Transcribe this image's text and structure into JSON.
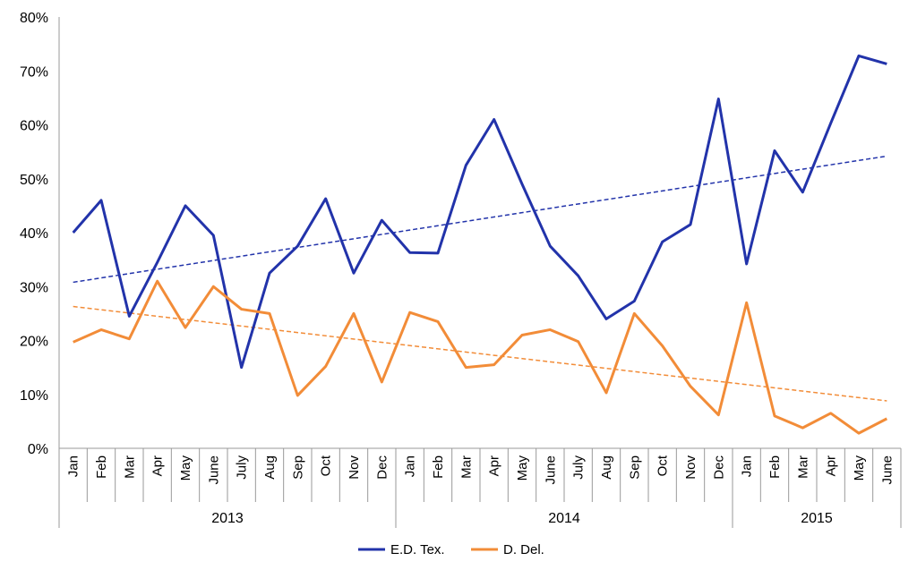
{
  "chart_data": {
    "type": "line",
    "title": "",
    "xlabel": "",
    "ylabel": "",
    "ylim": [
      0,
      80
    ],
    "yticks": [
      {
        "value": 0,
        "label": "0%"
      },
      {
        "value": 10,
        "label": "10%"
      },
      {
        "value": 20,
        "label": "20%"
      },
      {
        "value": 30,
        "label": "30%"
      },
      {
        "value": 40,
        "label": "40%"
      },
      {
        "value": 50,
        "label": "50%"
      },
      {
        "value": 60,
        "label": "60%"
      },
      {
        "value": 70,
        "label": "70%"
      },
      {
        "value": 80,
        "label": "80%"
      }
    ],
    "categories": [
      "Jan",
      "Feb",
      "Mar",
      "Apr",
      "May",
      "June",
      "July",
      "Aug",
      "Sep",
      "Oct",
      "Nov",
      "Dec",
      "Jan",
      "Feb",
      "Mar",
      "Apr",
      "May",
      "June",
      "July",
      "Aug",
      "Sep",
      "Oct",
      "Nov",
      "Dec",
      "Jan",
      "Feb",
      "Mar",
      "Apr",
      "May",
      "June"
    ],
    "year_groups": [
      {
        "label": "2013",
        "start": 0,
        "end": 11
      },
      {
        "label": "2014",
        "start": 12,
        "end": 23
      },
      {
        "label": "2015",
        "start": 24,
        "end": 29
      }
    ],
    "grid": false,
    "legend_position": "bottom-center",
    "series": [
      {
        "name": "E.D. Tex.",
        "color": "#2233aa",
        "values": [
          40,
          46,
          24.5,
          34.5,
          45,
          39.5,
          15,
          32.5,
          37.5,
          46.3,
          32.5,
          42.3,
          36.3,
          36.2,
          52.5,
          61,
          49,
          37.5,
          32,
          24,
          27.3,
          38.3,
          41.5,
          64.8,
          34.2,
          55.2,
          47.5,
          60.3,
          72.8,
          71.3
        ],
        "trendline": {
          "style": "dashed",
          "start": 30.8,
          "end": 54.2
        }
      },
      {
        "name": "D. Del.",
        "color": "#f28c38",
        "values": [
          19.7,
          22,
          20.3,
          31,
          22.4,
          30,
          25.8,
          25,
          9.8,
          15.2,
          25,
          12.3,
          25.2,
          23.5,
          15,
          15.5,
          21,
          22,
          19.8,
          10.3,
          25,
          19,
          11.5,
          6.2,
          27,
          6,
          3.8,
          6.5,
          2.8,
          5.5
        ],
        "trendline": {
          "style": "dashed",
          "start": 26.3,
          "end": 8.8
        }
      }
    ]
  }
}
